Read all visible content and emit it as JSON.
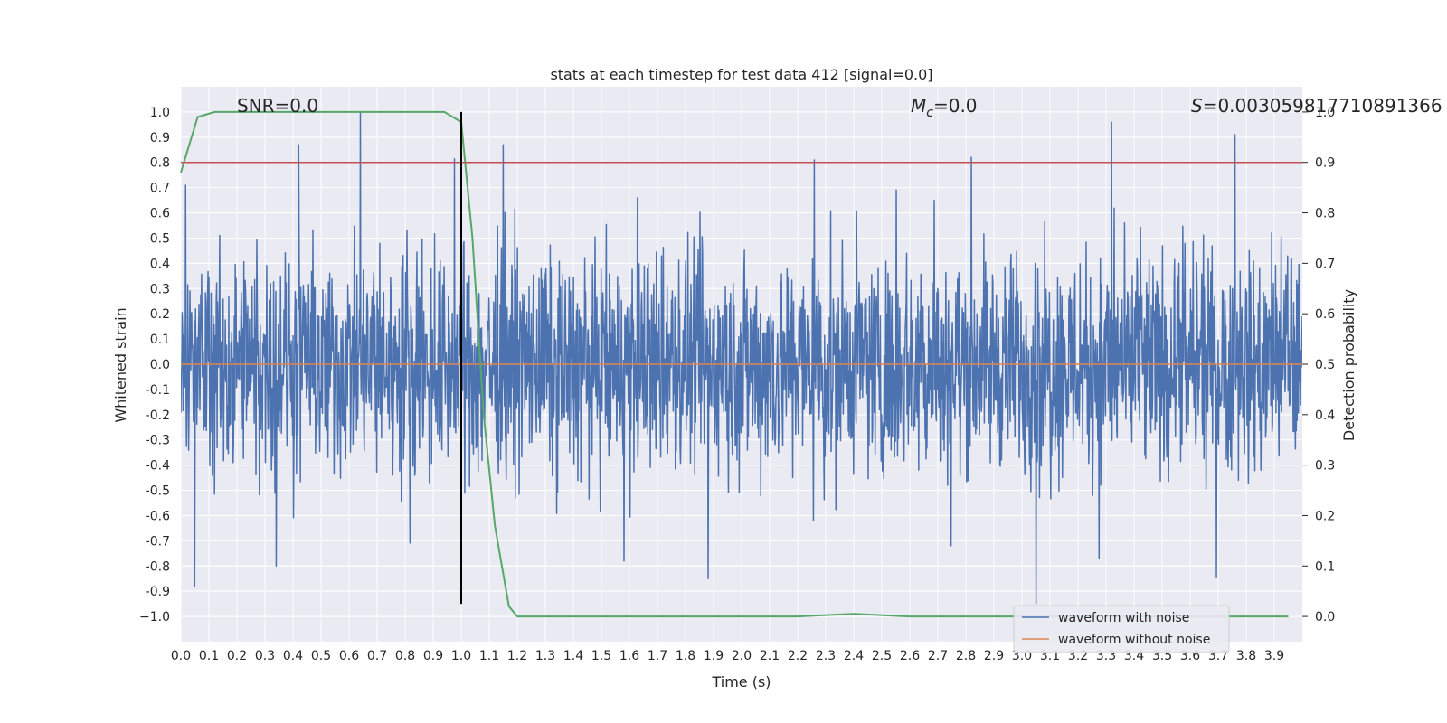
{
  "chart_data": {
    "type": "line",
    "title": "stats at each timestep for test data 412 [signal=0.0]",
    "xlabel": "Time (s)",
    "ylabel": "Whitened strain",
    "y2label": "Detection probability",
    "xlim": [
      0.0,
      4.0
    ],
    "ylim": [
      -1.1,
      1.1
    ],
    "y2lim": [
      -0.05,
      1.05
    ],
    "xticks": [
      "0.0",
      "0.1",
      "0.2",
      "0.3",
      "0.4",
      "0.5",
      "0.6",
      "0.7",
      "0.8",
      "0.9",
      "1.0",
      "1.1",
      "1.2",
      "1.3",
      "1.4",
      "1.5",
      "1.6",
      "1.7",
      "1.8",
      "1.9",
      "2.0",
      "2.1",
      "2.2",
      "2.3",
      "2.4",
      "2.5",
      "2.6",
      "2.7",
      "2.8",
      "2.9",
      "3.0",
      "3.1",
      "3.2",
      "3.3",
      "3.4",
      "3.5",
      "3.6",
      "3.7",
      "3.8",
      "3.9"
    ],
    "yticks": [
      "1.0",
      "0.9",
      "0.8",
      "0.7",
      "0.6",
      "0.5",
      "0.4",
      "0.3",
      "0.2",
      "0.1",
      "0.0",
      "-0.1",
      "-0.2",
      "-0.3",
      "-0.4",
      "-0.5",
      "-0.6",
      "-0.7",
      "-0.8",
      "-0.9",
      "−1.0"
    ],
    "y2ticks": [
      "1.0",
      "0.9",
      "0.8",
      "0.7",
      "0.6",
      "0.5",
      "0.4",
      "0.3",
      "0.2",
      "0.1",
      "0.0"
    ],
    "annotations": {
      "snr": "SNR=0.0",
      "mc_symbol": "M",
      "mc_sub": "c",
      "mc_value": "=0.0",
      "s_symbol": "S",
      "s_value": "=0.003059817710891366"
    },
    "series": [
      {
        "name": "waveform with noise",
        "color": "#4c72b0",
        "note": "noise trace, approx. amplitude within ±0.5 with spikes up to ±1.0",
        "spikes": [
          {
            "x": 0.05,
            "y": -0.88
          },
          {
            "x": 0.34,
            "y": -0.8
          },
          {
            "x": 0.42,
            "y": 0.87
          },
          {
            "x": 0.64,
            "y": 1.0
          },
          {
            "x": 1.15,
            "y": 0.87
          },
          {
            "x": 1.58,
            "y": -0.78
          },
          {
            "x": 1.88,
            "y": -0.85
          },
          {
            "x": 2.26,
            "y": 0.81
          },
          {
            "x": 2.82,
            "y": 0.82
          },
          {
            "x": 3.05,
            "y": -0.95
          },
          {
            "x": 3.32,
            "y": 0.96
          },
          {
            "x": 3.76,
            "y": 0.91
          }
        ]
      },
      {
        "name": "waveform without noise",
        "color": "#dd8452",
        "x": [
          0.0,
          4.0
        ],
        "y": [
          0.0,
          0.0
        ]
      },
      {
        "name": "detection probability",
        "color": "#55a868",
        "axis": "y2",
        "x": [
          0.0,
          0.06,
          0.12,
          0.2,
          0.5,
          0.94,
          1.0,
          1.04,
          1.08,
          1.12,
          1.17,
          1.2,
          1.5,
          2.0,
          2.2,
          2.4,
          2.6,
          3.0,
          3.5,
          3.95
        ],
        "y": [
          0.88,
          0.99,
          1.0,
          1.0,
          1.0,
          1.0,
          0.98,
          0.75,
          0.4,
          0.18,
          0.02,
          0.0,
          0.0,
          0.0,
          0.0,
          0.005,
          0.0,
          0.0,
          0.0,
          0.0
        ]
      }
    ],
    "reference_lines": {
      "threshold_y2": 0.9,
      "threshold_color": "#c44e52",
      "vertical_x": 1.0,
      "vertical_y_range": [
        -0.95,
        1.0
      ],
      "vertical_color": "#000000"
    },
    "legend": {
      "position": "lower-right",
      "entries": [
        "waveform with noise",
        "waveform without noise"
      ]
    },
    "grid": true,
    "colors": {
      "axes_bg": "#eaeaf2",
      "grid": "#ffffff"
    }
  }
}
